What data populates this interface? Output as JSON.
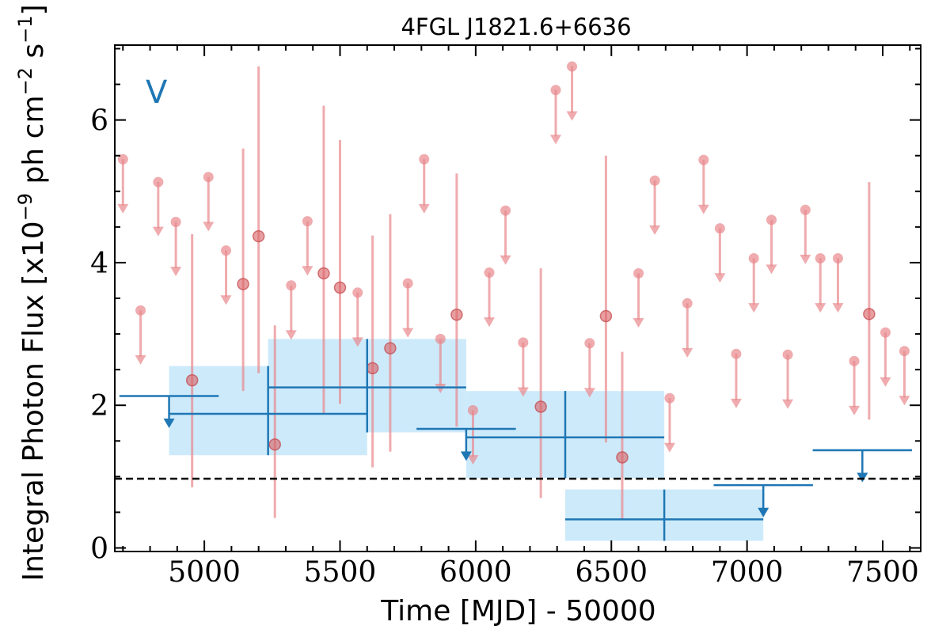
{
  "chart_data": {
    "type": "scatter",
    "title": "4FGL J1821.6+6636",
    "xlabel": "Time [MJD] - 50000",
    "ylabel": "Integral Photon Flux [x10^-9 ph cm^-2 s^-1]",
    "band_label": "V",
    "xlim": [
      4670,
      7640
    ],
    "ylim": [
      -0.05,
      7.05
    ],
    "x_ticks": [
      5000,
      5500,
      6000,
      6500,
      7000,
      7500
    ],
    "y_ticks": [
      0,
      2,
      4,
      6
    ],
    "reference_line": 0.97,
    "colors": {
      "fine": "#e8888c",
      "coarse": "#1f77b4",
      "coarse_band": "#cdeafb",
      "reference": "#000000"
    },
    "fine_detections": [
      {
        "x": 4955,
        "y": 2.35,
        "ylow": 0.85,
        "yhigh": 4.4
      },
      {
        "x": 5143,
        "y": 3.7,
        "ylow": 2.2,
        "yhigh": 5.6
      },
      {
        "x": 5200,
        "y": 4.37,
        "ylow": 2.45,
        "yhigh": 6.75
      },
      {
        "x": 5260,
        "y": 1.45,
        "ylow": 0.42,
        "yhigh": 3.12
      },
      {
        "x": 5440,
        "y": 3.85,
        "ylow": 1.88,
        "yhigh": 6.2
      },
      {
        "x": 5500,
        "y": 3.65,
        "ylow": 2.02,
        "yhigh": 5.72
      },
      {
        "x": 5620,
        "y": 2.52,
        "ylow": 1.13,
        "yhigh": 4.38
      },
      {
        "x": 5685,
        "y": 2.8,
        "ylow": 1.35,
        "yhigh": 4.68
      },
      {
        "x": 5930,
        "y": 3.27,
        "ylow": 1.7,
        "yhigh": 5.25
      },
      {
        "x": 6240,
        "y": 1.98,
        "ylow": 0.7,
        "yhigh": 3.92
      },
      {
        "x": 6480,
        "y": 3.25,
        "ylow": 1.48,
        "yhigh": 5.5
      },
      {
        "x": 6540,
        "y": 1.27,
        "ylow": 0.4,
        "yhigh": 2.75
      },
      {
        "x": 7450,
        "y": 3.28,
        "ylow": 1.8,
        "yhigh": 5.13
      }
    ],
    "fine_upper_limits": [
      {
        "x": 4700,
        "y": 5.45
      },
      {
        "x": 4765,
        "y": 3.33
      },
      {
        "x": 4830,
        "y": 5.13
      },
      {
        "x": 4895,
        "y": 4.57
      },
      {
        "x": 5015,
        "y": 5.2
      },
      {
        "x": 5080,
        "y": 4.17
      },
      {
        "x": 5320,
        "y": 3.68
      },
      {
        "x": 5380,
        "y": 4.58
      },
      {
        "x": 5565,
        "y": 3.58
      },
      {
        "x": 5750,
        "y": 3.71
      },
      {
        "x": 5810,
        "y": 5.45
      },
      {
        "x": 5870,
        "y": 2.93
      },
      {
        "x": 5990,
        "y": 1.93
      },
      {
        "x": 6050,
        "y": 3.86
      },
      {
        "x": 6110,
        "y": 4.73
      },
      {
        "x": 6175,
        "y": 2.88
      },
      {
        "x": 6295,
        "y": 6.42
      },
      {
        "x": 6355,
        "y": 6.75
      },
      {
        "x": 6420,
        "y": 2.87
      },
      {
        "x": 6600,
        "y": 3.85
      },
      {
        "x": 6660,
        "y": 5.15
      },
      {
        "x": 6715,
        "y": 2.1
      },
      {
        "x": 6780,
        "y": 3.43
      },
      {
        "x": 6840,
        "y": 5.44
      },
      {
        "x": 6900,
        "y": 4.48
      },
      {
        "x": 6960,
        "y": 2.72
      },
      {
        "x": 7025,
        "y": 4.06
      },
      {
        "x": 7090,
        "y": 4.6
      },
      {
        "x": 7150,
        "y": 2.71
      },
      {
        "x": 7215,
        "y": 4.74
      },
      {
        "x": 7270,
        "y": 4.06
      },
      {
        "x": 7335,
        "y": 4.06
      },
      {
        "x": 7395,
        "y": 2.62
      },
      {
        "x": 7510,
        "y": 3.02
      },
      {
        "x": 7580,
        "y": 2.76
      }
    ],
    "coarse_detections": [
      {
        "x": 5235,
        "xerr": 365,
        "y": 1.88,
        "ylow": 1.3,
        "yhigh": 2.55
      },
      {
        "x": 5600,
        "xerr": 365,
        "y": 2.25,
        "ylow": 1.62,
        "yhigh": 2.93
      },
      {
        "x": 6330,
        "xerr": 365,
        "y": 1.55,
        "ylow": 0.98,
        "yhigh": 2.2
      },
      {
        "x": 6695,
        "xerr": 365,
        "y": 0.4,
        "ylow": 0.1,
        "yhigh": 0.82
      }
    ],
    "coarse_upper_limits": [
      {
        "x": 4870,
        "xerr": 183,
        "y": 2.13
      },
      {
        "x": 5965,
        "xerr": 183,
        "y": 1.67
      },
      {
        "x": 7060,
        "xerr": 183,
        "y": 0.88
      },
      {
        "x": 7425,
        "xerr": 183,
        "y": 1.37
      }
    ]
  }
}
